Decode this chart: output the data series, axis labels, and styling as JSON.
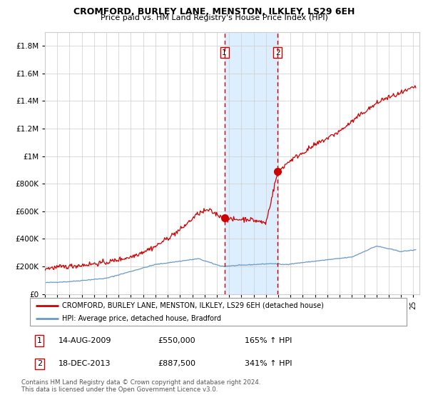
{
  "title": "CROMFORD, BURLEY LANE, MENSTON, ILKLEY, LS29 6EH",
  "subtitle": "Price paid vs. HM Land Registry's House Price Index (HPI)",
  "sale1_date": 2009.617,
  "sale1_price": 550000,
  "sale1_label": "14-AUG-2009",
  "sale1_pct": "165%",
  "sale2_date": 2013.962,
  "sale2_price": 887500,
  "sale2_label": "18-DEC-2013",
  "sale2_pct": "341%",
  "legend_red": "CROMFORD, BURLEY LANE, MENSTON, ILKLEY, LS29 6EH (detached house)",
  "legend_blue": "HPI: Average price, detached house, Bradford",
  "footer1": "Contains HM Land Registry data © Crown copyright and database right 2024.",
  "footer2": "This data is licensed under the Open Government Licence v3.0.",
  "red_color": "#cc0000",
  "blue_color": "#6699cc",
  "highlight_color": "#ddeeff",
  "grid_color": "#cccccc",
  "ylim_max": 1900000,
  "xmin": 1995.0,
  "xmax": 2025.5,
  "yticks": [
    0,
    200000,
    400000,
    600000,
    800000,
    1000000,
    1200000,
    1400000,
    1600000,
    1800000
  ]
}
